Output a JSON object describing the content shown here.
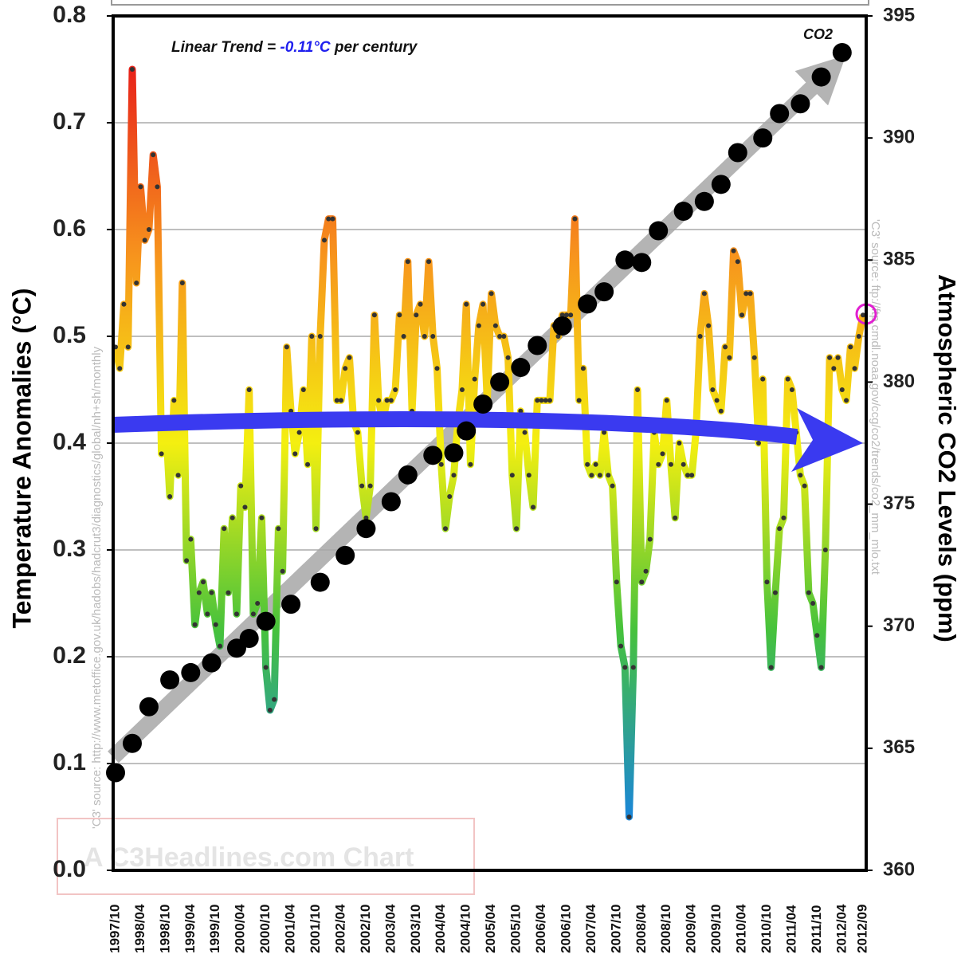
{
  "chart_data": {
    "type": "line",
    "ylabel": "Temperature Anomalies (°C)",
    "y2label": "Atmospheric CO2 Levels (ppm)",
    "annotation_prefix": "Linear Trend =",
    "annotation_value": "-0.11°C",
    "annotation_suffix": "per century",
    "source_left": "'C3' source: http://www.metoffice.gov.uk/hadobs/hadcrut3/diagnostics/global/nh+sh/monthly",
    "source_right": "'C3' source: ftp://ftp.cmdl.noaa.gov/ccg/co2/trends/co2_mm_mlo.txt",
    "watermark": "A C3Headlines.com Chart",
    "categories": [
      "1997/10",
      null,
      null,
      null,
      null,
      null,
      "1998/04",
      null,
      null,
      null,
      null,
      null,
      "1998/10",
      null,
      null,
      null,
      null,
      null,
      "1999/04",
      null,
      null,
      null,
      null,
      null,
      "1999/10",
      null,
      null,
      null,
      null,
      null,
      "2000/04",
      null,
      null,
      null,
      null,
      null,
      "2000/10",
      null,
      null,
      null,
      null,
      null,
      "2001/04",
      null,
      null,
      null,
      null,
      null,
      "2001/10",
      null,
      null,
      null,
      null,
      null,
      "2002/04",
      null,
      null,
      null,
      null,
      null,
      "2002/10",
      null,
      null,
      null,
      null,
      null,
      "2003/04",
      null,
      null,
      null,
      null,
      null,
      "2003/10",
      null,
      null,
      null,
      null,
      null,
      "2004/04",
      null,
      null,
      null,
      null,
      null,
      "2004/10",
      null,
      null,
      null,
      null,
      null,
      "2005/04",
      null,
      null,
      null,
      null,
      null,
      "2005/10",
      null,
      null,
      null,
      null,
      null,
      "2006/04",
      null,
      null,
      null,
      null,
      null,
      "2006/10",
      null,
      null,
      null,
      null,
      null,
      "2007/04",
      null,
      null,
      null,
      null,
      null,
      "2007/10",
      null,
      null,
      null,
      null,
      null,
      "2008/04",
      null,
      null,
      null,
      null,
      null,
      "2008/10",
      null,
      null,
      null,
      null,
      null,
      "2009/04",
      null,
      null,
      null,
      null,
      null,
      "2009/10",
      null,
      null,
      null,
      null,
      null,
      "2010/04",
      null,
      null,
      null,
      null,
      null,
      "2010/10",
      null,
      null,
      null,
      null,
      null,
      "2011/04",
      null,
      null,
      null,
      null,
      null,
      "2011/10",
      null,
      null,
      null,
      null,
      null,
      "2012/04",
      null,
      null,
      null,
      null,
      "2012/09"
    ],
    "series": [
      {
        "style": "line",
        "color_scale": [
          "#e8231a",
          "#f7941d",
          "#f4ef10",
          "#46c23c",
          "#1a86d8"
        ],
        "values": [
          0.49,
          0.47,
          0.53,
          0.49,
          0.75,
          0.55,
          0.64,
          0.59,
          0.6,
          0.67,
          0.64,
          0.39,
          0.42,
          0.35,
          0.44,
          0.37,
          0.55,
          0.29,
          0.31,
          0.23,
          0.26,
          0.27,
          0.24,
          0.26,
          0.23,
          0.21,
          0.32,
          0.26,
          0.33,
          0.24,
          0.36,
          0.34,
          0.45,
          0.24,
          0.25,
          0.33,
          0.19,
          0.15,
          0.16,
          0.32,
          0.28,
          0.49,
          0.43,
          0.39,
          0.41,
          0.45,
          0.38,
          0.5,
          0.32,
          0.5,
          0.59,
          0.61,
          0.61,
          0.44,
          0.44,
          0.47,
          0.48,
          0.42,
          0.41,
          0.36,
          0.33,
          0.36,
          0.52,
          0.44,
          0.42,
          0.44,
          0.44,
          0.45,
          0.52,
          0.5,
          0.57,
          0.43,
          0.52,
          0.53,
          0.5,
          0.57,
          0.5,
          0.47,
          0.38,
          0.32,
          0.35,
          0.37,
          0.42,
          0.45,
          0.53,
          0.38,
          0.46,
          0.51,
          0.53,
          0.44,
          0.54,
          0.51,
          0.5,
          0.5,
          0.48,
          0.37,
          0.32,
          0.43,
          0.41,
          0.37,
          0.34,
          0.44,
          0.44,
          0.44,
          0.44,
          0.51,
          0.5,
          0.52,
          0.52,
          0.52,
          0.61,
          0.44,
          0.47,
          0.38,
          0.37,
          0.38,
          0.37,
          0.41,
          0.37,
          0.36,
          0.27,
          0.21,
          0.19,
          0.05,
          0.19,
          0.45,
          0.27,
          0.28,
          0.31,
          0.41,
          0.38,
          0.39,
          0.44,
          0.38,
          0.33,
          0.4,
          0.38,
          0.37,
          0.37,
          0.41,
          0.5,
          0.54,
          0.51,
          0.45,
          0.44,
          0.43,
          0.49,
          0.48,
          0.58,
          0.57,
          0.52,
          0.54,
          0.54,
          0.48,
          0.4,
          0.46,
          0.27,
          0.19,
          0.26,
          0.32,
          0.33,
          0.46,
          0.45,
          0.41,
          0.37,
          0.36,
          0.26,
          0.25,
          0.22,
          0.19,
          0.3,
          0.48,
          0.47,
          0.48,
          0.45,
          0.44,
          0.49,
          0.47,
          0.5,
          0.52
        ]
      },
      {
        "name": "CO2",
        "style": "dots",
        "color": "#000000",
        "axis": "y2",
        "values": [
          364,
          null,
          null,
          null,
          365.2,
          null,
          null,
          null,
          366.7,
          null,
          null,
          null,
          null,
          367.8,
          null,
          null,
          null,
          null,
          368.1,
          null,
          null,
          null,
          null,
          368.5,
          null,
          null,
          null,
          null,
          null,
          369.1,
          null,
          null,
          369.5,
          null,
          null,
          null,
          370.2,
          null,
          null,
          null,
          null,
          null,
          370.9,
          null,
          null,
          null,
          null,
          null,
          null,
          371.8,
          null,
          null,
          null,
          null,
          null,
          372.9,
          null,
          null,
          null,
          null,
          374,
          null,
          null,
          null,
          null,
          null,
          375.1,
          null,
          null,
          null,
          376.2,
          null,
          null,
          null,
          null,
          null,
          377,
          null,
          null,
          null,
          null,
          377.1,
          null,
          null,
          378,
          null,
          null,
          null,
          379.1,
          null,
          null,
          null,
          380,
          null,
          null,
          null,
          null,
          380.6,
          null,
          null,
          null,
          381.5,
          null,
          null,
          null,
          null,
          null,
          382.3,
          null,
          null,
          null,
          null,
          null,
          383.2,
          null,
          null,
          null,
          383.7,
          null,
          null,
          null,
          null,
          385,
          null,
          null,
          null,
          384.9,
          null,
          null,
          null,
          386.2,
          null,
          null,
          null,
          null,
          null,
          387,
          null,
          null,
          null,
          null,
          387.4,
          null,
          null,
          null,
          388.1,
          null,
          null,
          null,
          389.4,
          null,
          null,
          null,
          null,
          null,
          390,
          null,
          null,
          null,
          391,
          null,
          null,
          null,
          null,
          391.4,
          null,
          null,
          null,
          null,
          392.5,
          null,
          null,
          null,
          null,
          393.5,
          null,
          null,
          null,
          null,
          null
        ]
      }
    ],
    "ylim": [
      0,
      0.8
    ],
    "yticks": [
      {
        "value": 0,
        "label": "0.0"
      },
      0.1,
      0.2,
      0.3,
      0.4,
      0.5,
      0.6,
      0.7,
      0.8
    ],
    "y2lim": [
      360,
      395
    ],
    "y2ticks": [
      360,
      365,
      370,
      375,
      380,
      385,
      390,
      395
    ],
    "grid": true
  }
}
